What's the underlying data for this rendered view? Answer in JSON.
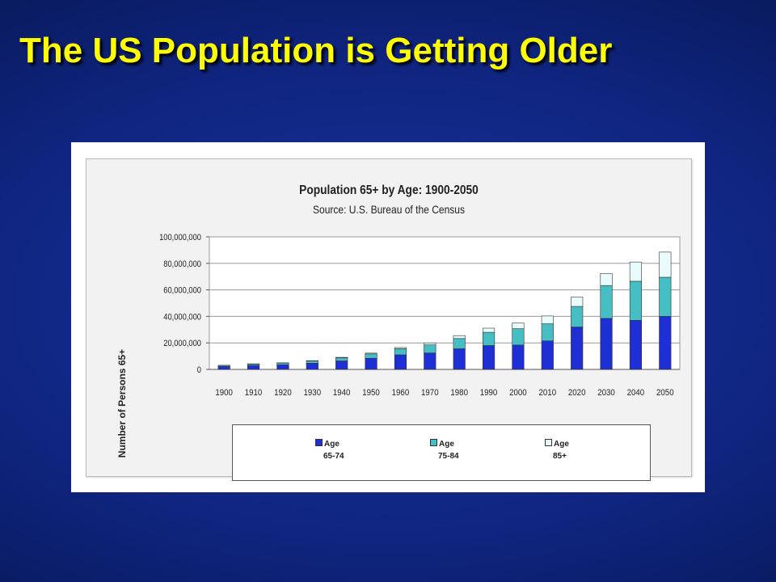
{
  "slide": {
    "title": "The US Population is Getting Older"
  },
  "colors": {
    "title": "#ffff00",
    "background": "#0f2580",
    "age_65_74": "#1f2fd6",
    "age_75_84": "#45bfc4",
    "age_85_plus": "#e9fbfd"
  },
  "chart_data": {
    "type": "bar",
    "stacked": true,
    "title": "Population 65+ by Age: 1900-2050",
    "subtitle": "Source: U.S. Bureau of the Census",
    "xlabel": "",
    "ylabel": "Number of Persons 65+",
    "ylim": [
      0,
      100000000
    ],
    "yticks": [
      0,
      20000000,
      40000000,
      60000000,
      80000000,
      100000000
    ],
    "ytick_labels": [
      "0",
      "20,000,000",
      "40,000,000",
      "60,000,000",
      "80,000,000",
      "100,000,000"
    ],
    "grid": true,
    "legend_position": "bottom",
    "categories": [
      "1900",
      "1910",
      "1920",
      "1930",
      "1940",
      "1950",
      "1960",
      "1970",
      "1980",
      "1990",
      "2000",
      "2010",
      "2020",
      "2030",
      "2040",
      "2050"
    ],
    "series": [
      {
        "name": "Age 65-74",
        "label_line1": "Age",
        "label_line2": "65-74",
        "color": "#1f2fd6",
        "values": [
          2200000,
          3000000,
          3500000,
          4700000,
          6400000,
          8400000,
          11000000,
          12400000,
          15600000,
          18000000,
          18400000,
          21500000,
          32000000,
          38500000,
          37000000,
          40000000
        ]
      },
      {
        "name": "Age 75-84",
        "label_line1": "Age",
        "label_line2": "75-84",
        "color": "#45bfc4",
        "values": [
          800000,
          1000000,
          1300000,
          1600000,
          2300000,
          3300000,
          4600000,
          6100000,
          7700000,
          10000000,
          12300000,
          12900000,
          15500000,
          24800000,
          29500000,
          29500000
        ]
      },
      {
        "name": "Age 85+",
        "label_line1": "Age",
        "label_line2": "85+",
        "color": "#e9fbfd",
        "values": [
          100000,
          200000,
          200000,
          300000,
          400000,
          600000,
          900000,
          1500000,
          2200000,
          3100000,
          4300000,
          5900000,
          7000000,
          9000000,
          14500000,
          19000000
        ]
      }
    ]
  }
}
